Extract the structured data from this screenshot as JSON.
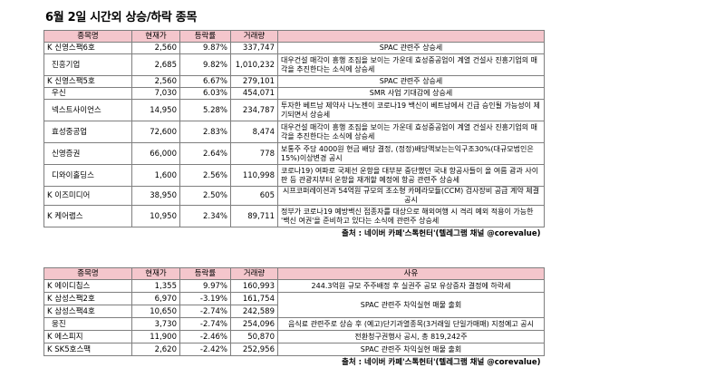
{
  "title": "6월 2일  시간외 상승/하락 종목",
  "rise_table": {
    "headers": [
      "종목명",
      "현재가",
      "등락률",
      "거래량",
      ""
    ],
    "rows": [
      {
        "name": "K 신영스팩6호",
        "price": "2,560",
        "rate": "9.87%",
        "volume": "337,747",
        "reason": "SPAC 관련주 상승세"
      },
      {
        "name": "진흥기업",
        "price": "2,685",
        "rate": "9.82%",
        "volume": "1,010,232",
        "reason": "대우건설 매각이 흥행 조짐을 보이는 가운데 효성중공업이 계열 건설사 진흥기업의 매각을 추진한다는 소식에 상승세"
      },
      {
        "name": "K 신영스팩5호",
        "price": "2,560",
        "rate": "6.67%",
        "volume": "279,101",
        "reason": "SPAC 관련주 상승세"
      },
      {
        "name": "우신",
        "price": "7,030",
        "rate": "6.03%",
        "volume": "454,071",
        "reason": "SMR 사업 기대감에 상승세"
      },
      {
        "name": "넥스트사이언스",
        "price": "14,950",
        "rate": "5.28%",
        "volume": "234,787",
        "reason": "투자한 베트남 제약사 나노젠이 코로나19 백신이 베트남에서 긴급 승인될 가능성이 제기되면서 상승세"
      },
      {
        "name": "효성중공업",
        "price": "72,600",
        "rate": "2.83%",
        "volume": "8,474",
        "reason": "대우건설 매각이 흥행 조짐을 보이는 가운데 효성중공업이 계열 건설사 진흥기업의 매각을 추진한다는 소식에 상승세"
      },
      {
        "name": "신영증권",
        "price": "66,000",
        "rate": "2.64%",
        "volume": "778",
        "reason": "보통주 주당 4000원 현금 배당 결정, (정정)배당액보는는익구조30%(대규모법인은15%)이상변경 공시"
      },
      {
        "name": "디와이홀딩스",
        "price": "1,600",
        "rate": "2.56%",
        "volume": "110,998",
        "reason": "코로나19) 여파로 국제선 운항을 대부분 중단했던 국내 항공사들이 올 여름 괌과 사이판 등 관광지부터 운항을 재개할 예정에 항공 관련주 상승세"
      },
      {
        "name": "K 이즈미디어",
        "price": "38,950",
        "rate": "2.50%",
        "volume": "605",
        "reason": "시프코퍼레이션과 54억원 규모의 초소형 카메라모듈(CCM) 검사장비 공급 계약 체결 공시"
      },
      {
        "name": "K 케어랩스",
        "price": "10,950",
        "rate": "2.34%",
        "volume": "89,711",
        "reason": "정부가 코로나19 예방백신 접종자를 대상으로 해외여행 시 격리 예외 적용이 가능한 '백신 여권'을 준비하고 있다는 소식에 관련주 상승세"
      }
    ],
    "source": "출처 : 네이버 카페'스톡헌터'(텔레그램 채널 @corevalue)"
  },
  "fall_table": {
    "headers": [
      "종목명",
      "현재가",
      "등락률",
      "거래량",
      "사유"
    ],
    "rows": [
      {
        "name": "K 에이디칩스",
        "price": "1,355",
        "rate": "9.97%",
        "volume": "160,993",
        "reason": "244.3억원 규모 주주배정 후 실권주 공모 유상증자 결정에 하락세"
      },
      {
        "name": "K 삼성스팩2호",
        "price": "6,970",
        "rate": "-3.19%",
        "volume": "161,754",
        "reason": "SPAC 관련주 차익실현 매물 출회"
      },
      {
        "name": "K 삼성스팩4호",
        "price": "10,650",
        "rate": "-2.74%",
        "volume": "242,589",
        "reason": ""
      },
      {
        "name": "웅진",
        "price": "3,730",
        "rate": "-2.74%",
        "volume": "254,096",
        "reason": "음식료 관련주로 상승 후 (예고)단기과열종목(3거래일 단일가매매) 지정예고 공시"
      },
      {
        "name": "K 에스피지",
        "price": "11,900",
        "rate": "-2.46%",
        "volume": "50,870",
        "reason": "전환청구권행사 공시, 총 819,242주"
      },
      {
        "name": "K SK5호스팩",
        "price": "2,620",
        "rate": "-2.42%",
        "volume": "252,956",
        "reason": "SPAC 관련주 차익실현 매물 출회"
      }
    ],
    "source": "출처 : 네이버 카페'스톡헌터'(텔레그램 채널 @corevalue)"
  }
}
